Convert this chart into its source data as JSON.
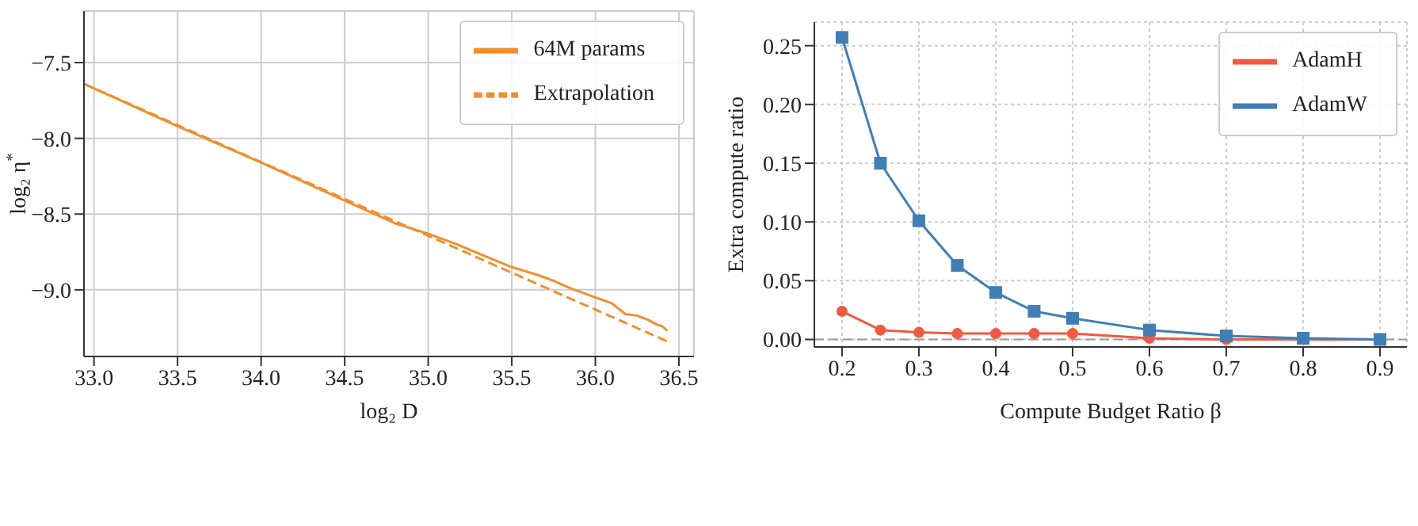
{
  "chart_data": [
    {
      "type": "line",
      "xlabel": "log₂ D",
      "ylabel": "log₂ η$^{*}$",
      "xlim": [
        32.94,
        36.59
      ],
      "ylim": [
        -9.44,
        -7.16
      ],
      "xticks": [
        {
          "value": 33,
          "label": "33.0"
        },
        {
          "value": 33.5,
          "label": "33.5"
        },
        {
          "value": 34,
          "label": "34.0"
        },
        {
          "value": 34.5,
          "label": "34.5"
        },
        {
          "value": 35,
          "label": "35.0"
        },
        {
          "value": 35.5,
          "label": "35.5"
        },
        {
          "value": 36,
          "label": "36.0"
        },
        {
          "value": 36.5,
          "label": "36.5"
        }
      ],
      "yticks": [
        {
          "value": -7.5,
          "label": "−7.5"
        },
        {
          "value": -8,
          "label": "−8.0"
        },
        {
          "value": -8.5,
          "label": "−8.5"
        },
        {
          "value": -9,
          "label": "−9.0"
        }
      ],
      "grid": true,
      "legend": "top right",
      "series": [
        {
          "name": "64M params",
          "color": "#f28e2b",
          "line_style": "solid",
          "marker": "none",
          "x": [
            32.94,
            33.5,
            34.0,
            34.5,
            34.8,
            35.0,
            35.15,
            35.3,
            35.5,
            35.65,
            35.75,
            35.85,
            36.0,
            36.1,
            36.18,
            36.25,
            36.32,
            36.37,
            36.4,
            36.43
          ],
          "values": [
            -7.64,
            -7.92,
            -8.16,
            -8.41,
            -8.56,
            -8.63,
            -8.69,
            -8.76,
            -8.85,
            -8.9,
            -8.94,
            -8.99,
            -9.05,
            -9.09,
            -9.16,
            -9.17,
            -9.2,
            -9.23,
            -9.24,
            -9.27
          ]
        },
        {
          "name": "Extrapolation",
          "color": "#f28e2b",
          "line_style": "dashed",
          "marker": "none",
          "x": [
            32.94,
            36.43
          ],
          "values": [
            -7.64,
            -9.34
          ]
        }
      ]
    },
    {
      "type": "line",
      "xlabel": "Compute Budget Ratio β",
      "ylabel": "Extra compute ratio",
      "xlim": [
        0.164,
        0.935
      ],
      "ylim": [
        -0.0064,
        0.27
      ],
      "xticks": [
        0.2,
        0.3,
        0.4,
        0.5,
        0.6,
        0.7,
        0.8,
        0.9
      ],
      "yticks": [
        {
          "value": 0,
          "label": "0.00"
        },
        {
          "value": 0.05,
          "label": "0.05"
        },
        {
          "value": 0.1,
          "label": "0.10"
        },
        {
          "value": 0.15,
          "label": "0.15"
        },
        {
          "value": 0.2,
          "label": "0.20"
        },
        {
          "value": 0.25,
          "label": "0.25"
        }
      ],
      "grid": true,
      "legend": "top right",
      "ref_lines": [
        {
          "axis": "y",
          "value": 0,
          "color": "#999999",
          "line_style": "dashed"
        }
      ],
      "series": [
        {
          "name": "AdamH",
          "color": "#f05a40",
          "marker": "circle",
          "line_style": "solid",
          "x": [
            0.2,
            0.25,
            0.3,
            0.35,
            0.4,
            0.45,
            0.5,
            0.6,
            0.7,
            0.8,
            0.9
          ],
          "values": [
            0.024,
            0.008,
            0.006,
            0.005,
            0.005,
            0.005,
            0.005,
            0.001,
            0.0,
            0.0,
            0.0
          ]
        },
        {
          "name": "AdamW",
          "color": "#3f7fb5",
          "marker": "square",
          "line_style": "solid",
          "x": [
            0.2,
            0.25,
            0.3,
            0.35,
            0.4,
            0.45,
            0.5,
            0.6,
            0.7,
            0.8,
            0.9
          ],
          "values": [
            0.257,
            0.15,
            0.101,
            0.063,
            0.04,
            0.024,
            0.018,
            0.008,
            0.003,
            0.001,
            0.0
          ]
        }
      ]
    }
  ]
}
